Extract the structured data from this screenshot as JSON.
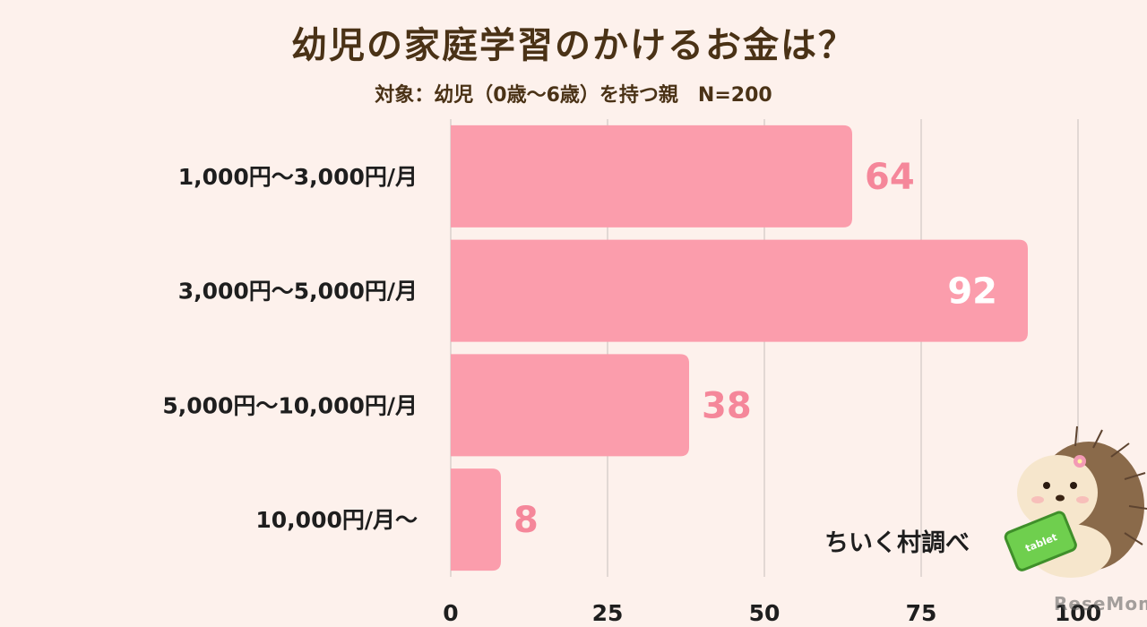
{
  "header": {
    "title": "幼児の家庭学習のかけるお金は？",
    "subtitle": "対象：幼児（0歳～6歳）を持つ親　N=200"
  },
  "credit": "ちいく村調べ",
  "watermark": "ReseMom",
  "mascot": {
    "icon": "hedgehog-with-tablet-icon",
    "tablet_text": "tablet"
  },
  "colors": {
    "bar": "#fb9dac",
    "value_label_outside": "#f5879a",
    "value_label_inside": "#ffffff",
    "grid": "#d9cfcb",
    "background": "#fdf1ec"
  },
  "chart_data": {
    "type": "bar",
    "orientation": "horizontal",
    "title": "幼児の家庭学習のかけるお金は？",
    "subtitle": "対象：幼児（0歳～6歳）を持つ親　N=200",
    "categories": [
      "1,000円～3,000円/月",
      "3,000円～5,000円/月",
      "5,000円～10,000円/月",
      "10,000円/月～"
    ],
    "values": [
      64,
      92,
      38,
      8
    ],
    "xlim": [
      0,
      100
    ],
    "xticks": [
      0,
      25,
      50,
      75,
      100
    ],
    "grid": true
  }
}
